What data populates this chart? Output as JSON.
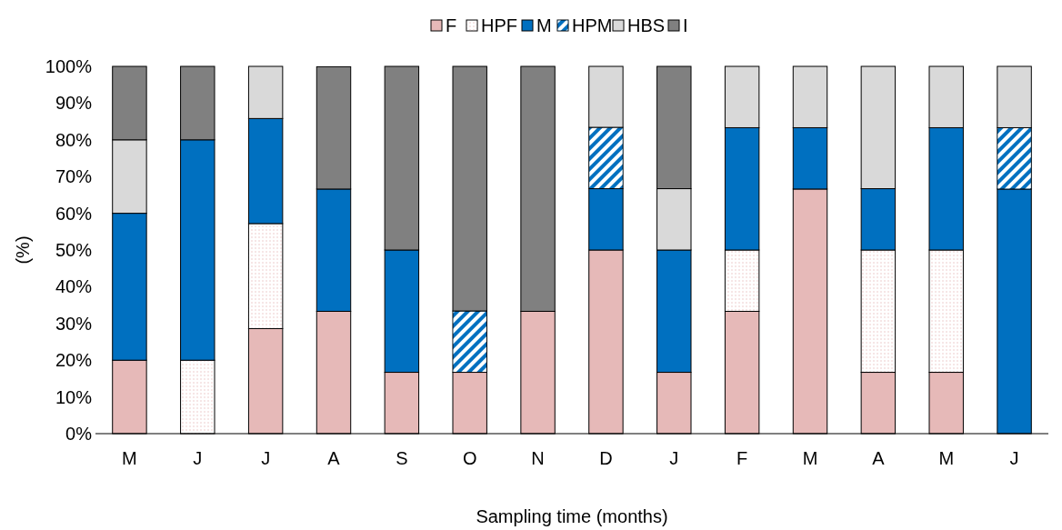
{
  "chart_data": {
    "type": "bar",
    "stacked": true,
    "xlabel": "Sampling time (months)",
    "ylabel": "(%)",
    "legend": "top",
    "grid": false,
    "categories": [
      "M",
      "J",
      "J",
      "A",
      "S",
      "O",
      "N",
      "D",
      "J",
      "F",
      "M",
      "A",
      "M",
      "J"
    ],
    "ylim": [
      0,
      100
    ],
    "yticks": [
      {
        "value": 0,
        "label": "0%"
      },
      {
        "value": 10,
        "label": "10%"
      },
      {
        "value": 20,
        "label": "20%"
      },
      {
        "value": 30,
        "label": "30%"
      },
      {
        "value": 40,
        "label": "40%"
      },
      {
        "value": 50,
        "label": "50%"
      },
      {
        "value": 60,
        "label": "60%"
      },
      {
        "value": 70,
        "label": "70%"
      },
      {
        "value": 80,
        "label": "80%"
      },
      {
        "value": 90,
        "label": "90%"
      },
      {
        "value": 100,
        "label": "100%"
      }
    ],
    "series": [
      {
        "name": "F",
        "color": "#e6b9b8",
        "values": [
          20,
          0,
          28.6,
          33.3,
          16.7,
          16.7,
          33.3,
          50,
          16.7,
          33.3,
          66.6,
          16.7,
          16.7,
          0
        ]
      },
      {
        "name": "HPF",
        "color": "#ffffff",
        "values": [
          0,
          20,
          28.6,
          0,
          0,
          0,
          0,
          0,
          0,
          16.7,
          0,
          33.3,
          33.3,
          0
        ]
      },
      {
        "name": "M",
        "color": "#0070c0",
        "values": [
          40,
          60,
          28.6,
          33.3,
          33.3,
          0,
          0,
          16.7,
          33.3,
          33.3,
          16.7,
          16.7,
          33.3,
          66.6
        ]
      },
      {
        "name": "HPM",
        "color": "#0070c0",
        "values": [
          0,
          0,
          0,
          0,
          0,
          16.7,
          0,
          16.7,
          0,
          0,
          0,
          0,
          0,
          16.7
        ]
      },
      {
        "name": "HBS",
        "color": "#d9d9d9",
        "values": [
          20,
          0,
          14.2,
          0,
          0,
          0,
          0,
          16.6,
          16.7,
          16.7,
          16.7,
          33.3,
          16.7,
          16.7
        ]
      },
      {
        "name": "I",
        "color": "#808080",
        "values": [
          20,
          20,
          0,
          33.3,
          50,
          66.6,
          66.7,
          0,
          33.3,
          0,
          0,
          0,
          0,
          0
        ]
      }
    ]
  }
}
